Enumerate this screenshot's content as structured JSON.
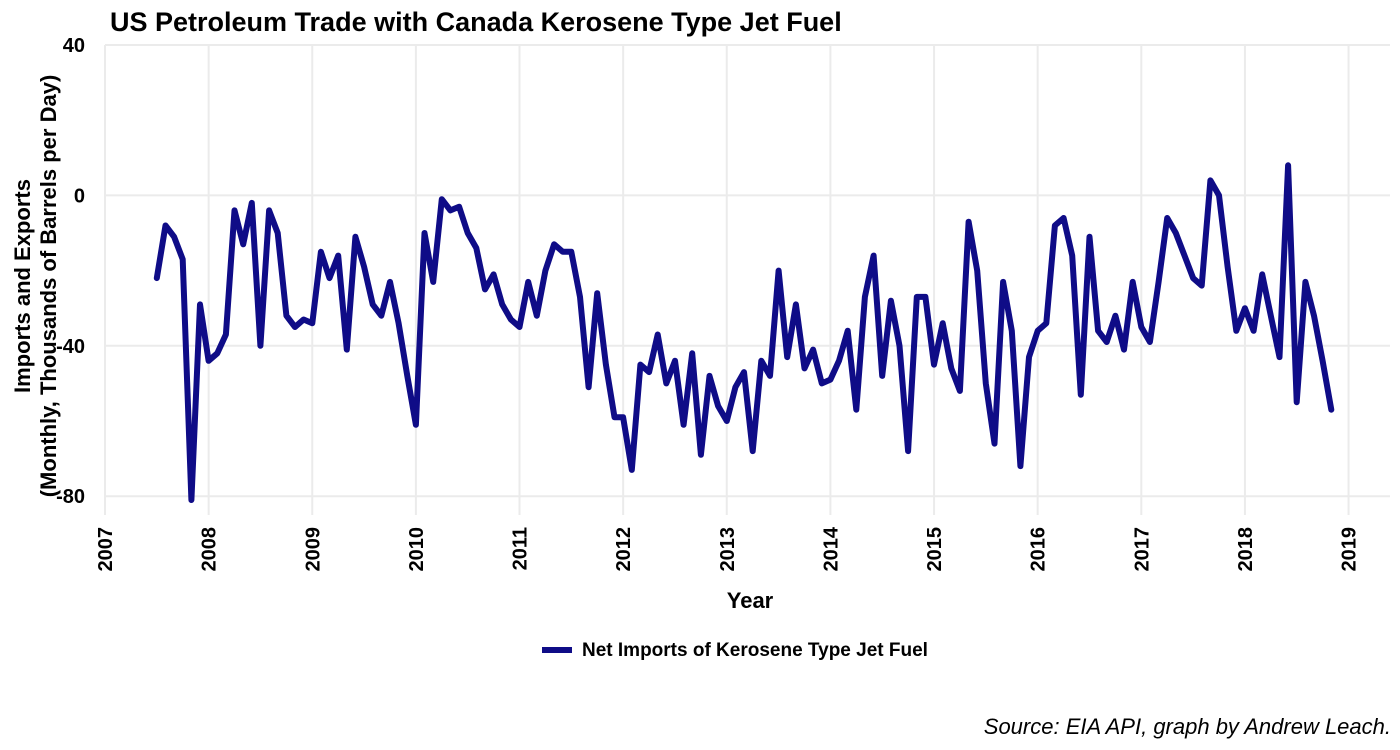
{
  "chart_data": {
    "type": "line",
    "title": "US Petroleum Trade with Canada Kerosene Type Jet Fuel",
    "xlabel": "Year",
    "ylabel_line1": "Imports and Exports",
    "ylabel_line2": "(Monthly, Thousands of Barrels per Day)",
    "caption": "Source: EIA API, graph by Andrew Leach.",
    "xlim": [
      2007,
      2019.4
    ],
    "ylim": [
      -85,
      40
    ],
    "x_ticks": [
      "2007",
      "2008",
      "2009",
      "2010",
      "2011",
      "2012",
      "2013",
      "2014",
      "2015",
      "2016",
      "2017",
      "2018",
      "2019"
    ],
    "y_ticks": [
      "40",
      "0",
      "-40",
      "-80"
    ],
    "y_tick_values": [
      40,
      0,
      -40,
      -80
    ],
    "grid": true,
    "legend_position": "bottom",
    "series": [
      {
        "name": "Net Imports of Kerosene Type Jet Fuel",
        "color": "#0f0c87",
        "start": "2007-07",
        "frequency": "monthly",
        "values": [
          -22,
          -8,
          -11,
          -17,
          -81,
          -29,
          -44,
          -42,
          -37,
          -4,
          -13,
          -2,
          -40,
          -4,
          -10,
          -32,
          -35,
          -33,
          -34,
          -15,
          -22,
          -16,
          -41,
          -11,
          -19,
          -29,
          -32,
          -23,
          -34,
          -48,
          -61,
          -10,
          -23,
          -1,
          -4,
          -3,
          -10,
          -14,
          -25,
          -21,
          -29,
          -33,
          -35,
          -23,
          -32,
          -20,
          -13,
          -15,
          -15,
          -27,
          -51,
          -26,
          -45,
          -59,
          -59,
          -73,
          -45,
          -47,
          -37,
          -50,
          -44,
          -61,
          -42,
          -69,
          -48,
          -56,
          -60,
          -51,
          -47,
          -68,
          -44,
          -48,
          -20,
          -43,
          -29,
          -46,
          -41,
          -50,
          -49,
          -44,
          -36,
          -57,
          -27,
          -16,
          -48,
          -28,
          -40,
          -68,
          -27,
          -27,
          -45,
          -34,
          -46,
          -52,
          -7,
          -20,
          -50,
          -66,
          -23,
          -36,
          -72,
          -43,
          -36,
          -34,
          -8,
          -6,
          -16,
          -53,
          -11,
          -36,
          -39,
          -32,
          -41,
          -23,
          -35,
          -39,
          -23,
          -6,
          -10,
          -16,
          -22,
          -24,
          4,
          0,
          -19,
          -36,
          -30,
          -36,
          -21,
          -32,
          -43,
          8,
          -55,
          -23,
          -32,
          -44,
          -57
        ]
      }
    ]
  }
}
